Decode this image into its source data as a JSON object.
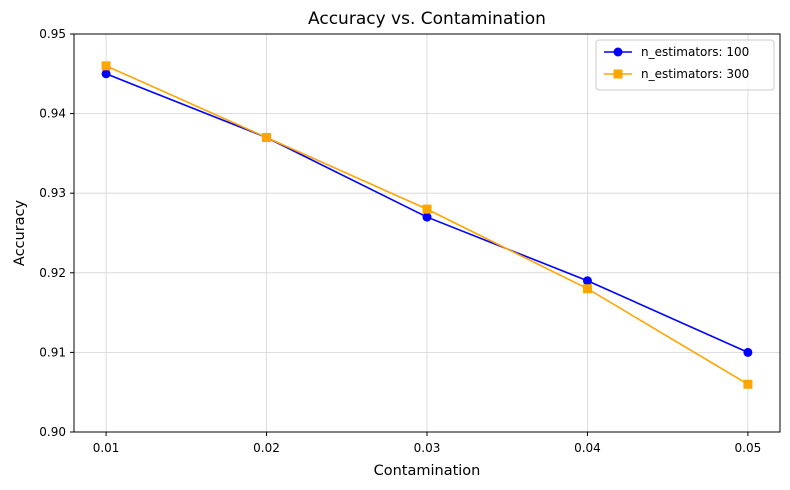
{
  "chart_data": {
    "type": "line",
    "title": "Accuracy vs. Contamination",
    "xlabel": "Contamination",
    "ylabel": "Accuracy",
    "x": [
      0.01,
      0.02,
      0.03,
      0.04,
      0.05
    ],
    "xticks": [
      "0.01",
      "0.02",
      "0.03",
      "0.04",
      "0.05"
    ],
    "xlim": [
      0.008,
      0.052
    ],
    "ylim": [
      0.9,
      0.95
    ],
    "yticks": [
      "0.90",
      "0.91",
      "0.92",
      "0.93",
      "0.94",
      "0.95"
    ],
    "grid": true,
    "legend_position": "top-right",
    "series": [
      {
        "name": "n_estimators: 100",
        "color": "#0000ff",
        "marker": "circle",
        "values": [
          0.945,
          0.937,
          0.927,
          0.919,
          0.91
        ]
      },
      {
        "name": "n_estimators: 300",
        "color": "#ffa500",
        "marker": "square",
        "values": [
          0.946,
          0.937,
          0.928,
          0.918,
          0.906
        ]
      }
    ]
  }
}
